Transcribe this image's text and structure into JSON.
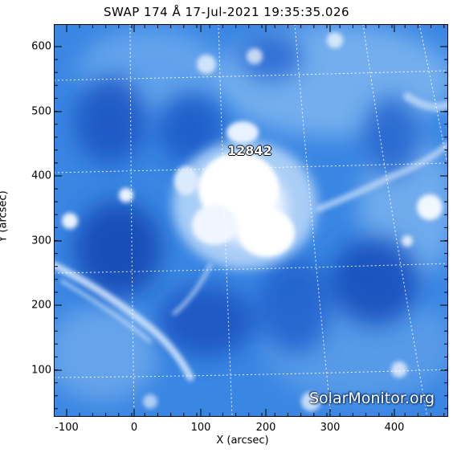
{
  "title": "SWAP 174 Å 17-Jul-2021 19:35:35.026",
  "xlabel": "X (arcsec)",
  "ylabel": "Y (arcsec)",
  "x_ticks": [
    "-100",
    "0",
    "100",
    "200",
    "300",
    "400"
  ],
  "y_ticks": [
    "600",
    "500",
    "400",
    "300",
    "200",
    "100"
  ],
  "active_region": "12842",
  "watermark": "SolarMonitor.org",
  "colors": {
    "background": "#2f7fe0",
    "bright": "#ffffff",
    "dark": "#0d3d9e",
    "grid": "#ffffff"
  }
}
